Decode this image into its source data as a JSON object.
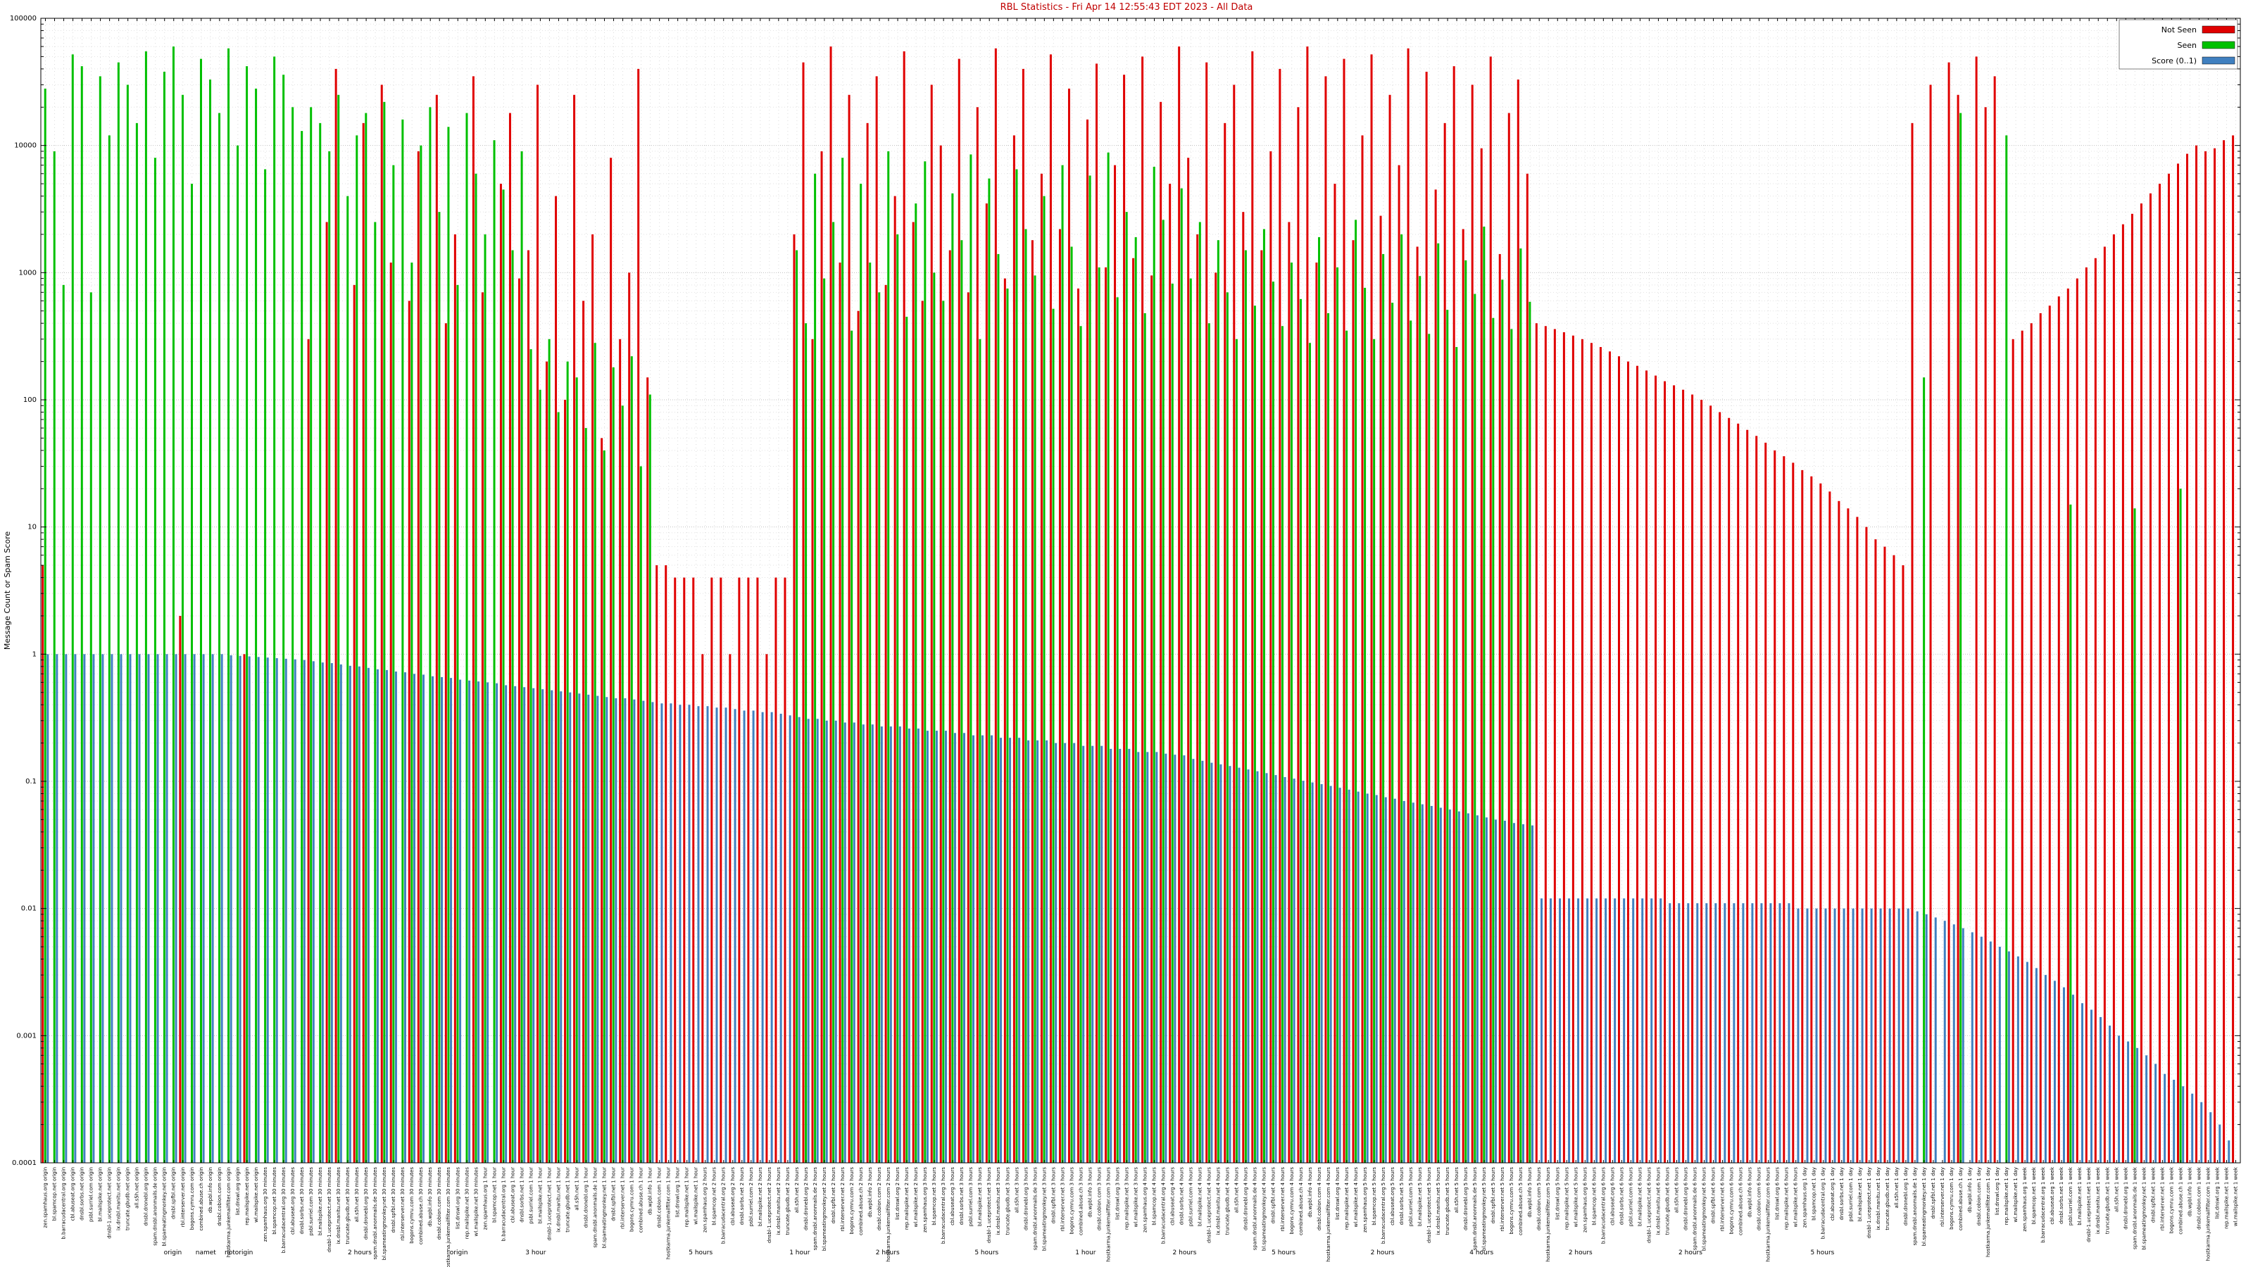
{
  "page": {
    "title": "RBL Statistics - Fri Apr 14 12:55:43 EDT 2023 - All Data"
  },
  "chart_data": {
    "type": "bar",
    "title": "RBL Statistics - Fri Apr 14 12:55:43 EDT 2023 - All Data",
    "xlabel": "",
    "ylabel": "Message Count or Spam Score",
    "y_scale": "log",
    "ylim": [
      0.0001,
      100000
    ],
    "y_ticks": [
      "100000",
      "10000",
      "1000",
      "100",
      "10",
      "1",
      "0.1",
      "0.01",
      "0.001",
      "0.0001"
    ],
    "grid": true,
    "legend_position": "top-right",
    "legend": [
      {
        "label": "Not Seen",
        "color": "#e00000"
      },
      {
        "label": "Seen",
        "color": "#00c000"
      },
      {
        "label": "Score (0..1)",
        "color": "#4080c0"
      }
    ],
    "category_hosts": [
      "zen.spamhaus.org",
      "bl.spamcop.net",
      "b.barracudacentral.org",
      "cbl.abuseat.org",
      "dnsbl.sorbs.net",
      "psbl.surriel.com",
      "bl.mailspike.net",
      "dnsbl-1.uceprotect.net",
      "ix.dnsbl.manitu.net",
      "truncate.gbudb.net",
      "all.s5h.net",
      "dnsbl.dronebl.org",
      "spam.dnsbl.anonmails.de",
      "bl.spameatingmonkey.net",
      "dnsbl.spfbl.net",
      "rbl.interserver.net",
      "bogons.cymru.com",
      "combined.abuse.ch",
      "db.wpbl.info",
      "dnsbl.cobion.com",
      "hostkarma.junkemailfilter.com",
      "list.dnswl.org",
      "rep.mailspike.net",
      "wl.mailspike.net"
    ],
    "category_delays": [
      "origin",
      "30 minutes",
      "1 hour",
      "2 hours",
      "3 hours",
      "4 hours",
      "5 hours",
      "6 hours",
      "1 day",
      "1 week"
    ],
    "secondary_axis_labels": [
      {
        "x": 0.06,
        "text": "origin"
      },
      {
        "x": 0.075,
        "text": "namet"
      },
      {
        "x": 0.09,
        "text": "notorigin"
      },
      {
        "x": 0.145,
        "text": "2 hours"
      },
      {
        "x": 0.19,
        "text": "origin"
      },
      {
        "x": 0.225,
        "text": "3 hour"
      },
      {
        "x": 0.3,
        "text": "5 hours"
      },
      {
        "x": 0.345,
        "text": "1 hour"
      },
      {
        "x": 0.385,
        "text": "2 hours"
      },
      {
        "x": 0.43,
        "text": "5 hours"
      },
      {
        "x": 0.475,
        "text": "1 hour"
      },
      {
        "x": 0.52,
        "text": "2 hours"
      },
      {
        "x": 0.565,
        "text": "5 hours"
      },
      {
        "x": 0.61,
        "text": "2 hours"
      },
      {
        "x": 0.655,
        "text": "4 hours"
      },
      {
        "x": 0.7,
        "text": "2 hours"
      },
      {
        "x": 0.75,
        "text": "2 hours"
      },
      {
        "x": 0.81,
        "text": "5 hours"
      }
    ],
    "series": [
      {
        "name": "Not Seen",
        "color": "#e00000",
        "values": [
          5,
          0,
          0,
          0,
          0,
          0,
          0,
          0,
          0,
          0,
          0,
          0,
          0,
          0,
          0,
          2,
          0,
          0,
          0,
          0,
          0,
          0,
          1,
          0,
          0,
          0,
          0,
          0,
          0,
          300,
          0,
          2500,
          40000,
          0,
          800,
          15000,
          0,
          30000,
          1200,
          0,
          600,
          9000,
          0,
          25000,
          400,
          2000,
          0,
          35000,
          700,
          0,
          5000,
          18000,
          900,
          1500,
          30000,
          200,
          4000,
          100,
          25000,
          600,
          2000,
          50,
          8000,
          300,
          1000,
          40000,
          150,
          5,
          5,
          4,
          4,
          4,
          1,
          4,
          4,
          1,
          4,
          4,
          4,
          1,
          4,
          4,
          2000,
          45000,
          300,
          9000,
          60000,
          1200,
          25000,
          500,
          15000,
          35000,
          800,
          4000,
          55000,
          2500,
          600,
          30000,
          10000,
          1500,
          48000,
          700,
          20000,
          3500,
          58000,
          900,
          12000,
          40000,
          1800,
          6000,
          52000,
          2200,
          28000,
          750,
          16000,
          44000,
          1100,
          7000,
          36000,
          1300,
          50000,
          950,
          22000,
          5000,
          60000,
          8000,
          2000,
          45000,
          1000,
          15000,
          30000,
          3000,
          55000,
          1500,
          9000,
          40000,
          2500,
          20000,
          60000,
          1200,
          35000,
          5000,
          48000,
          1800,
          12000,
          52000,
          2800,
          25000,
          7000,
          58000,
          1600,
          38000,
          4500,
          15000,
          42000,
          2200,
          30000,
          9500,
          50000,
          1400,
          18000,
          33000,
          6000,
          400,
          380,
          360,
          340,
          320,
          300,
          280,
          260,
          240,
          220,
          200,
          185,
          170,
          155,
          140,
          130,
          120,
          110,
          100,
          90,
          80,
          72,
          65,
          58,
          52,
          46,
          40,
          36,
          32,
          28,
          25,
          22,
          19,
          16,
          14,
          12,
          10,
          8,
          7,
          6,
          5,
          15000,
          0,
          30000,
          0,
          45000,
          25000,
          0,
          50000,
          20000,
          35000,
          0,
          300,
          350,
          400,
          480,
          550,
          650,
          750,
          900,
          1100,
          1300,
          1600,
          2000,
          2400,
          2900,
          3500,
          4200,
          5000,
          6000,
          7200,
          8600,
          10000,
          9000,
          9500,
          11000,
          12000
        ]
      },
      {
        "name": "Seen",
        "color": "#00c000",
        "values": [
          28000,
          9000,
          800,
          52000,
          42000,
          700,
          35000,
          12000,
          45000,
          30000,
          15000,
          55000,
          8000,
          38000,
          60000,
          25000,
          5000,
          48000,
          33000,
          18000,
          58000,
          10000,
          42000,
          28000,
          6500,
          50000,
          36000,
          20000,
          13000,
          20000,
          15000,
          9000,
          25000,
          4000,
          12000,
          18000,
          2500,
          22000,
          7000,
          16000,
          1200,
          10000,
          20000,
          3000,
          14000,
          800,
          18000,
          6000,
          2000,
          11000,
          4500,
          1500,
          9000,
          250,
          120,
          300,
          80,
          200,
          150,
          60,
          280,
          40,
          180,
          90,
          220,
          30,
          110,
          0,
          0,
          0,
          0,
          0,
          0,
          0,
          0,
          0,
          0,
          0,
          0,
          0,
          0,
          0,
          1500,
          400,
          6000,
          900,
          2500,
          8000,
          350,
          5000,
          1200,
          700,
          9000,
          2000,
          450,
          3500,
          7500,
          1000,
          600,
          4200,
          1800,
          8500,
          300,
          5500,
          1400,
          750,
          6500,
          2200,
          950,
          4000,
          520,
          7000,
          1600,
          380,
          5800,
          1100,
          8800,
          640,
          3000,
          1900,
          480,
          6800,
          2600,
          820,
          4600,
          900,
          2500,
          400,
          1800,
          700,
          300,
          1500,
          550,
          2200,
          850,
          380,
          1200,
          620,
          280,
          1900,
          480,
          1100,
          350,
          2600,
          760,
          300,
          1400,
          580,
          2000,
          420,
          940,
          330,
          1700,
          510,
          260,
          1250,
          680,
          2300,
          440,
          880,
          360,
          1550,
          590,
          0,
          0,
          0,
          0,
          0,
          0,
          0,
          0,
          0,
          0,
          0,
          0,
          0,
          0,
          0,
          0,
          0,
          0,
          0,
          0,
          0,
          0,
          0,
          0,
          0,
          0,
          0,
          0,
          0,
          0,
          0,
          0,
          0,
          0,
          0,
          0,
          0,
          0,
          0,
          0,
          0,
          0,
          150,
          0,
          0,
          0,
          18000,
          0,
          0,
          0,
          0,
          12000,
          0,
          0,
          0,
          0,
          0,
          0,
          15,
          0,
          0,
          0,
          0,
          0,
          0,
          14,
          0,
          0,
          0,
          0,
          20,
          0,
          0,
          0,
          0,
          0,
          0
        ]
      },
      {
        "name": "Score (0..1)",
        "color": "#4080c0",
        "values": [
          1,
          1,
          1,
          1,
          1,
          1,
          1,
          1,
          1,
          1,
          1,
          1,
          1,
          1,
          1,
          1,
          1,
          1,
          1,
          1,
          0.98,
          0.97,
          0.96,
          0.95,
          0.94,
          0.93,
          0.92,
          0.91,
          0.9,
          0.88,
          0.86,
          0.85,
          0.83,
          0.81,
          0.8,
          0.78,
          0.76,
          0.75,
          0.73,
          0.72,
          0.7,
          0.69,
          0.67,
          0.66,
          0.65,
          0.63,
          0.62,
          0.61,
          0.6,
          0.59,
          0.57,
          0.56,
          0.55,
          0.54,
          0.53,
          0.52,
          0.51,
          0.5,
          0.49,
          0.48,
          0.47,
          0.46,
          0.45,
          0.45,
          0.44,
          0.43,
          0.42,
          0.41,
          0.41,
          0.4,
          0.4,
          0.39,
          0.39,
          0.38,
          0.38,
          0.37,
          0.36,
          0.36,
          0.35,
          0.35,
          0.34,
          0.33,
          0.32,
          0.31,
          0.31,
          0.3,
          0.3,
          0.29,
          0.29,
          0.28,
          0.28,
          0.27,
          0.27,
          0.27,
          0.26,
          0.26,
          0.25,
          0.25,
          0.25,
          0.24,
          0.24,
          0.23,
          0.23,
          0.23,
          0.22,
          0.22,
          0.22,
          0.21,
          0.21,
          0.21,
          0.2,
          0.2,
          0.2,
          0.19,
          0.19,
          0.19,
          0.18,
          0.18,
          0.18,
          0.17,
          0.17,
          0.17,
          0.165,
          0.162,
          0.16,
          0.15,
          0.145,
          0.14,
          0.136,
          0.132,
          0.128,
          0.124,
          0.12,
          0.116,
          0.112,
          0.108,
          0.105,
          0.101,
          0.098,
          0.095,
          0.092,
          0.089,
          0.086,
          0.083,
          0.08,
          0.078,
          0.075,
          0.073,
          0.07,
          0.068,
          0.066,
          0.064,
          0.062,
          0.06,
          0.058,
          0.056,
          0.054,
          0.052,
          0.05,
          0.049,
          0.047,
          0.046,
          0.045,
          0.012,
          0.012,
          0.012,
          0.012,
          0.012,
          0.012,
          0.012,
          0.012,
          0.012,
          0.012,
          0.012,
          0.012,
          0.012,
          0.012,
          0.011,
          0.011,
          0.011,
          0.011,
          0.011,
          0.011,
          0.011,
          0.011,
          0.011,
          0.011,
          0.011,
          0.011,
          0.011,
          0.011,
          0.01,
          0.01,
          0.01,
          0.01,
          0.01,
          0.01,
          0.01,
          0.01,
          0.01,
          0.01,
          0.01,
          0.01,
          0.01,
          0.0095,
          0.009,
          0.0085,
          0.008,
          0.0075,
          0.007,
          0.0065,
          0.006,
          0.0055,
          0.005,
          0.0046,
          0.0042,
          0.0038,
          0.0034,
          0.003,
          0.0027,
          0.0024,
          0.0021,
          0.0018,
          0.0016,
          0.0014,
          0.0012,
          0.001,
          0.0009,
          0.0008,
          0.0007,
          0.0006,
          0.0005,
          0.00045,
          0.0004,
          0.00035,
          0.0003,
          0.00025,
          0.0002,
          0.00015,
          0.0001
        ]
      }
    ]
  }
}
